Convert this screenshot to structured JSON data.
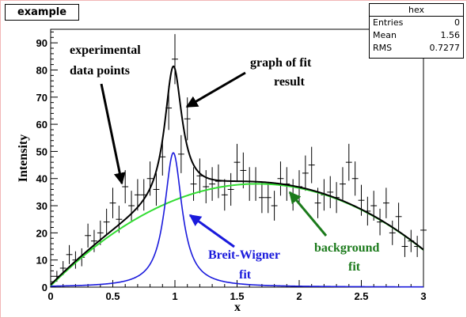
{
  "canvas_title": "example",
  "stats": {
    "name": "hex",
    "rows": [
      {
        "label": "Entries",
        "value": "0"
      },
      {
        "label": "Mean",
        "value": "1.56"
      },
      {
        "label": "RMS",
        "value": "0.7277"
      }
    ]
  },
  "annotations": {
    "data_points_line1": "experimental",
    "data_points_line2": "data points",
    "fit_graph_line1": "graph of fit",
    "fit_graph_line2": "result",
    "breit_wigner_line1": "Breit-Wigner",
    "breit_wigner_line2": "fit",
    "background_line1": "background",
    "background_line2": "fit"
  },
  "colors": {
    "data": "#000000",
    "total_fit": "#000000",
    "breit_wigner": "#1a1adc",
    "background_fit": "#33dd33",
    "background_label": "#1b7a1b",
    "frame": "#f2b6b6"
  },
  "chart_data": {
    "type": "line",
    "title": "",
    "xlabel": "x",
    "ylabel": "Intensity",
    "xlim": [
      0,
      3
    ],
    "ylim": [
      0,
      95
    ],
    "x_ticks": [
      0,
      0.5,
      1,
      1.5,
      2,
      2.5,
      3
    ],
    "x_tick_labels": [
      "0",
      "0.5",
      "1",
      "1.5",
      "2",
      "2.5",
      "3"
    ],
    "y_ticks": [
      0,
      10,
      20,
      30,
      40,
      50,
      60,
      70,
      80,
      90
    ],
    "y_tick_labels": [
      "0",
      "10",
      "20",
      "30",
      "40",
      "50",
      "60",
      "70",
      "80",
      "90"
    ],
    "data_points": {
      "x": [
        0.05,
        0.15,
        0.25,
        0.35,
        0.45,
        0.55,
        0.65,
        0.75,
        0.85,
        0.95,
        1.05,
        1.15,
        1.25,
        1.35,
        1.45,
        1.55,
        1.65,
        1.75,
        1.85,
        1.95,
        2.05,
        2.15,
        2.25,
        2.35,
        2.45,
        2.55,
        2.65,
        2.75,
        2.85,
        2.95,
        0.1,
        0.2,
        0.3,
        0.4,
        0.5,
        0.6,
        0.7,
        0.8,
        0.9,
        1.0,
        1.1,
        1.2,
        1.3,
        1.4,
        1.5,
        1.6,
        1.7,
        1.8,
        1.9,
        2.0,
        2.1,
        2.2,
        2.3,
        2.4,
        2.5,
        2.6,
        2.7,
        2.8,
        2.9,
        3.0
      ],
      "y": [
        4,
        12,
        11,
        17,
        24,
        25,
        30,
        34,
        36,
        66,
        49,
        38,
        37,
        39,
        36,
        43,
        38,
        33,
        40,
        34,
        42,
        31,
        35,
        38,
        40,
        28,
        24,
        20,
        15,
        15,
        7,
        10,
        19,
        20,
        31,
        37,
        34,
        40,
        48,
        84,
        62,
        41,
        38,
        34,
        46,
        38,
        33,
        30,
        38,
        37,
        45,
        34,
        33,
        46,
        32,
        30,
        31,
        26,
        17,
        21
      ],
      "yerr": [
        2,
        3.5,
        3.3,
        4.1,
        4.9,
        5,
        5.5,
        5.8,
        6,
        8.1,
        7,
        6.2,
        6.1,
        6.2,
        6,
        6.6,
        6.2,
        5.7,
        6.3,
        5.8,
        6.5,
        5.6,
        5.9,
        6.2,
        6.3,
        5.3,
        4.9,
        4.5,
        3.9,
        3.9,
        2.6,
        3.2,
        4.4,
        4.5,
        5.6,
        6.1,
        5.8,
        6.3,
        6.9,
        9.2,
        7.9,
        6.4,
        6.2,
        5.8,
        6.8,
        6.2,
        5.7,
        5.5,
        6.2,
        6.1,
        6.7,
        5.8,
        5.7,
        6.8,
        5.7,
        5.5,
        5.6,
        5.1,
        4.1,
        4.6
      ],
      "xerr": 0.025
    },
    "series": [
      {
        "name": "graph of fit result",
        "kind": "total_fit"
      },
      {
        "name": "Breit-Wigner fit",
        "kind": "breit_wigner"
      },
      {
        "name": "background fit",
        "kind": "background"
      }
    ],
    "model": {
      "background": {
        "quadratic": [
          0.5,
          45.2,
          -13.6
        ]
      },
      "breit_wigner": {
        "peak": 49.5,
        "mean": 0.987,
        "gamma": 0.085
      }
    }
  }
}
